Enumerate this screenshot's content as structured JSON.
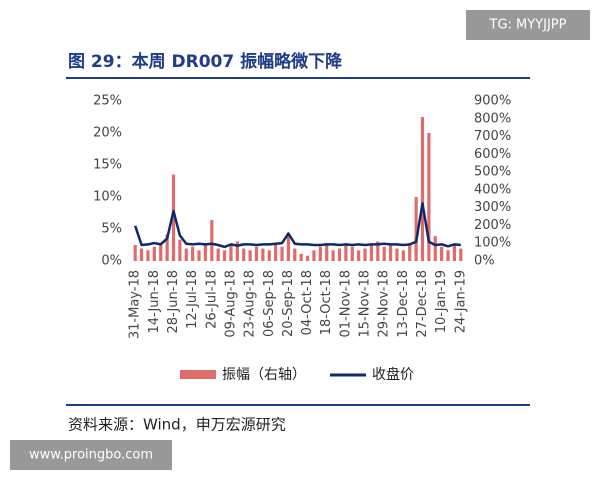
{
  "chart_data": {
    "type": "bar-line",
    "title": "图 29：本周 DR007 振幅略微下降",
    "source": "资料来源：Wind，申万宏源研究",
    "categories": [
      "31-May-18",
      null,
      null,
      "14-Jun-18",
      null,
      null,
      "28-Jun-18",
      null,
      null,
      "12-Jul-18",
      null,
      null,
      "26-Jul-18",
      null,
      null,
      "09-Aug-18",
      null,
      null,
      "23-Aug-18",
      null,
      null,
      "06-Sep-18",
      null,
      null,
      "20-Sep-18",
      null,
      null,
      "04-Oct-18",
      null,
      null,
      "18-Oct-18",
      null,
      null,
      "01-Nov-18",
      null,
      null,
      "15-Nov-18",
      null,
      null,
      "29-Nov-18",
      null,
      null,
      "13-Dec-18",
      null,
      null,
      "27-Dec-18",
      null,
      null,
      "10-Jan-19",
      null,
      null,
      "24-Jan-19"
    ],
    "series": [
      {
        "name": "振幅（右轴）",
        "type": "bar",
        "axis": "y2",
        "color": "#e06b6b",
        "values": [
          90,
          70,
          60,
          80,
          100,
          150,
          486,
          120,
          70,
          80,
          60,
          90,
          230,
          70,
          60,
          90,
          110,
          70,
          60,
          80,
          70,
          60,
          90,
          80,
          150,
          70,
          40,
          30,
          60,
          80,
          100,
          60,
          70,
          90,
          80,
          60,
          70,
          90,
          110,
          80,
          90,
          70,
          60,
          100,
          360,
          810,
          720,
          140,
          80,
          60,
          90,
          70
        ]
      },
      {
        "name": "收盘价",
        "type": "line",
        "axis": "y",
        "color": "#0d2a6b",
        "values": [
          5.5,
          2.5,
          2.6,
          2.8,
          2.6,
          3.5,
          7.8,
          4.0,
          2.7,
          2.6,
          2.7,
          2.6,
          2.7,
          2.5,
          2.2,
          2.6,
          2.4,
          2.6,
          2.6,
          2.5,
          2.6,
          2.6,
          2.7,
          2.8,
          4.3,
          2.7,
          2.6,
          2.6,
          2.5,
          2.5,
          2.6,
          2.6,
          2.5,
          2.6,
          2.5,
          2.6,
          2.5,
          2.6,
          2.6,
          2.7,
          2.6,
          2.6,
          2.5,
          2.6,
          3.0,
          9.0,
          3.0,
          2.5,
          2.6,
          2.3,
          2.6,
          2.5
        ]
      }
    ],
    "ylim": [
      0,
      25
    ],
    "yticks": [
      {
        "value": 0,
        "label": "0%"
      },
      {
        "value": 5,
        "label": "5%"
      },
      {
        "value": 10,
        "label": "10%"
      },
      {
        "value": 15,
        "label": "15%"
      },
      {
        "value": 20,
        "label": "20%"
      },
      {
        "value": 25,
        "label": "25%"
      }
    ],
    "y2lim": [
      0,
      900
    ],
    "y2ticks": [
      {
        "value": 0,
        "label": "0%"
      },
      {
        "value": 100,
        "label": "100%"
      },
      {
        "value": 200,
        "label": "200%"
      },
      {
        "value": 300,
        "label": "300%"
      },
      {
        "value": 400,
        "label": "400%"
      },
      {
        "value": 500,
        "label": "500%"
      },
      {
        "value": 600,
        "label": "600%"
      },
      {
        "value": 700,
        "label": "700%"
      },
      {
        "value": 800,
        "label": "800%"
      },
      {
        "value": 900,
        "label": "900%"
      }
    ],
    "grid": false
  },
  "watermarks": [
    "TG: MYYJJPP",
    "www.proingbo.com"
  ]
}
